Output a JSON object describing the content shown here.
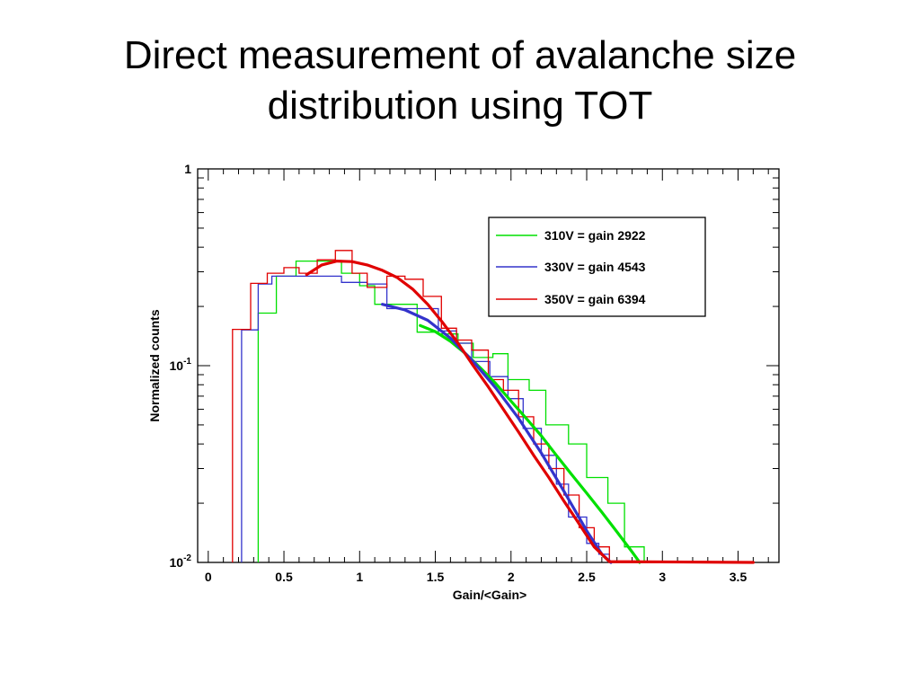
{
  "slide": {
    "title_line1": "Direct measurement of avalanche size",
    "title_line2": "distribution using TOT"
  },
  "chart_data": {
    "type": "line",
    "xlabel": "Gain/<Gain>",
    "ylabel": "Normalized counts",
    "xlim": [
      -0.07,
      3.77
    ],
    "ylim": [
      0.01,
      1
    ],
    "yscale": "log",
    "grid": false,
    "legend_position": "top-right",
    "x_ticks": [
      {
        "value": 0,
        "label": "0"
      },
      {
        "value": 0.5,
        "label": "0.5"
      },
      {
        "value": 1,
        "label": "1"
      },
      {
        "value": 1.5,
        "label": "1.5"
      },
      {
        "value": 2,
        "label": "2"
      },
      {
        "value": 2.5,
        "label": "2.5"
      },
      {
        "value": 3,
        "label": "3"
      },
      {
        "value": 3.5,
        "label": "3.5"
      }
    ],
    "y_ticks": [
      {
        "value": 1,
        "base": "1",
        "exp": ""
      },
      {
        "value": 0.1,
        "base": "10",
        "exp": "-1"
      },
      {
        "value": 0.01,
        "base": "10",
        "exp": "-2"
      }
    ],
    "series": [
      {
        "name": "310V = gain 2922",
        "color": "#00e000",
        "hist": [
          [
            0.33,
            0.01
          ],
          [
            0.33,
            0.185
          ],
          [
            0.45,
            0.185
          ],
          [
            0.45,
            0.285
          ],
          [
            0.58,
            0.285
          ],
          [
            0.58,
            0.34
          ],
          [
            0.88,
            0.34
          ],
          [
            0.88,
            0.295
          ],
          [
            1.0,
            0.295
          ],
          [
            1.0,
            0.255
          ],
          [
            1.1,
            0.255
          ],
          [
            1.1,
            0.205
          ],
          [
            1.38,
            0.205
          ],
          [
            1.38,
            0.148
          ],
          [
            1.52,
            0.148
          ],
          [
            1.52,
            0.145
          ],
          [
            1.65,
            0.145
          ],
          [
            1.65,
            0.13
          ],
          [
            1.75,
            0.13
          ],
          [
            1.75,
            0.11
          ],
          [
            1.88,
            0.11
          ],
          [
            1.88,
            0.115
          ],
          [
            1.98,
            0.115
          ],
          [
            1.98,
            0.085
          ],
          [
            2.12,
            0.085
          ],
          [
            2.12,
            0.075
          ],
          [
            2.23,
            0.075
          ],
          [
            2.23,
            0.05
          ],
          [
            2.38,
            0.05
          ],
          [
            2.38,
            0.04
          ],
          [
            2.5,
            0.04
          ],
          [
            2.5,
            0.027
          ],
          [
            2.64,
            0.027
          ],
          [
            2.64,
            0.02
          ],
          [
            2.75,
            0.02
          ],
          [
            2.75,
            0.012
          ],
          [
            2.88,
            0.012
          ],
          [
            2.88,
            0.01
          ]
        ],
        "fit": [
          [
            1.4,
            0.16
          ],
          [
            1.5,
            0.149
          ],
          [
            1.6,
            0.133
          ],
          [
            1.7,
            0.115
          ],
          [
            1.8,
            0.097
          ],
          [
            1.9,
            0.081
          ],
          [
            2.0,
            0.066
          ],
          [
            2.1,
            0.054
          ],
          [
            2.2,
            0.044
          ],
          [
            2.3,
            0.035
          ],
          [
            2.4,
            0.028
          ],
          [
            2.5,
            0.0225
          ],
          [
            2.6,
            0.018
          ],
          [
            2.7,
            0.0143
          ],
          [
            2.8,
            0.0113
          ],
          [
            2.85,
            0.01
          ]
        ]
      },
      {
        "name": "330V = gain 4543",
        "color": "#3333cc",
        "hist": [
          [
            0.22,
            0.01
          ],
          [
            0.22,
            0.152
          ],
          [
            0.33,
            0.152
          ],
          [
            0.33,
            0.26
          ],
          [
            0.42,
            0.26
          ],
          [
            0.42,
            0.285
          ],
          [
            0.88,
            0.285
          ],
          [
            0.88,
            0.265
          ],
          [
            1.05,
            0.265
          ],
          [
            1.05,
            0.26
          ],
          [
            1.18,
            0.26
          ],
          [
            1.18,
            0.195
          ],
          [
            1.52,
            0.195
          ],
          [
            1.52,
            0.15
          ],
          [
            1.64,
            0.15
          ],
          [
            1.64,
            0.13
          ],
          [
            1.74,
            0.13
          ],
          [
            1.74,
            0.105
          ],
          [
            1.86,
            0.105
          ],
          [
            1.86,
            0.088
          ],
          [
            1.98,
            0.088
          ],
          [
            1.98,
            0.068
          ],
          [
            2.08,
            0.068
          ],
          [
            2.08,
            0.048
          ],
          [
            2.2,
            0.048
          ],
          [
            2.2,
            0.035
          ],
          [
            2.3,
            0.035
          ],
          [
            2.3,
            0.025
          ],
          [
            2.38,
            0.025
          ],
          [
            2.38,
            0.017
          ],
          [
            2.5,
            0.017
          ],
          [
            2.5,
            0.0125
          ],
          [
            2.58,
            0.0125
          ],
          [
            2.58,
            0.011
          ],
          [
            2.65,
            0.011
          ],
          [
            2.65,
            0.01
          ]
        ],
        "fit": [
          [
            1.15,
            0.205
          ],
          [
            1.3,
            0.192
          ],
          [
            1.45,
            0.17
          ],
          [
            1.6,
            0.138
          ],
          [
            1.75,
            0.105
          ],
          [
            1.9,
            0.077
          ],
          [
            2.05,
            0.054
          ],
          [
            2.2,
            0.036
          ],
          [
            2.35,
            0.023
          ],
          [
            2.5,
            0.0145
          ],
          [
            2.6,
            0.011
          ],
          [
            2.66,
            0.01
          ]
        ]
      },
      {
        "name": "350V = gain 6394",
        "color": "#e00000",
        "hist": [
          [
            0.16,
            0.01
          ],
          [
            0.16,
            0.153
          ],
          [
            0.28,
            0.153
          ],
          [
            0.28,
            0.262
          ],
          [
            0.39,
            0.262
          ],
          [
            0.39,
            0.295
          ],
          [
            0.5,
            0.295
          ],
          [
            0.5,
            0.315
          ],
          [
            0.6,
            0.315
          ],
          [
            0.6,
            0.295
          ],
          [
            0.72,
            0.295
          ],
          [
            0.72,
            0.345
          ],
          [
            0.84,
            0.345
          ],
          [
            0.84,
            0.385
          ],
          [
            0.95,
            0.385
          ],
          [
            0.95,
            0.295
          ],
          [
            1.05,
            0.295
          ],
          [
            1.05,
            0.25
          ],
          [
            1.18,
            0.25
          ],
          [
            1.18,
            0.285
          ],
          [
            1.3,
            0.285
          ],
          [
            1.3,
            0.275
          ],
          [
            1.42,
            0.275
          ],
          [
            1.42,
            0.225
          ],
          [
            1.54,
            0.225
          ],
          [
            1.54,
            0.155
          ],
          [
            1.64,
            0.155
          ],
          [
            1.64,
            0.135
          ],
          [
            1.74,
            0.135
          ],
          [
            1.74,
            0.12
          ],
          [
            1.85,
            0.12
          ],
          [
            1.85,
            0.085
          ],
          [
            1.95,
            0.085
          ],
          [
            1.95,
            0.075
          ],
          [
            2.05,
            0.075
          ],
          [
            2.05,
            0.055
          ],
          [
            2.15,
            0.055
          ],
          [
            2.15,
            0.04
          ],
          [
            2.25,
            0.04
          ],
          [
            2.25,
            0.03
          ],
          [
            2.35,
            0.03
          ],
          [
            2.35,
            0.022
          ],
          [
            2.45,
            0.022
          ],
          [
            2.45,
            0.015
          ],
          [
            2.55,
            0.015
          ],
          [
            2.55,
            0.012
          ],
          [
            2.65,
            0.012
          ],
          [
            2.65,
            0.01
          ],
          [
            3.6,
            0.01
          ]
        ],
        "fit": [
          [
            0.65,
            0.29
          ],
          [
            0.75,
            0.325
          ],
          [
            0.85,
            0.34
          ],
          [
            0.95,
            0.338
          ],
          [
            1.05,
            0.325
          ],
          [
            1.15,
            0.305
          ],
          [
            1.25,
            0.28
          ],
          [
            1.35,
            0.245
          ],
          [
            1.45,
            0.205
          ],
          [
            1.55,
            0.165
          ],
          [
            1.65,
            0.13
          ],
          [
            1.75,
            0.1
          ],
          [
            1.85,
            0.078
          ],
          [
            1.95,
            0.06
          ],
          [
            2.05,
            0.046
          ],
          [
            2.15,
            0.035
          ],
          [
            2.25,
            0.027
          ],
          [
            2.35,
            0.0205
          ],
          [
            2.45,
            0.0157
          ],
          [
            2.55,
            0.012
          ],
          [
            2.65,
            0.0101
          ],
          [
            3.6,
            0.01
          ]
        ]
      }
    ]
  }
}
